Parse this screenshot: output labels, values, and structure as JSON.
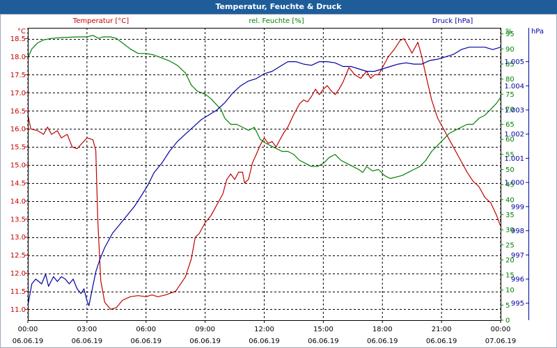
{
  "window": {
    "title": "Temperatur, Feuchte & Druck"
  },
  "chart_data": {
    "type": "line",
    "title": "Temperatur, Feuchte & Druck",
    "x_ticks": [
      {
        "time": "00:00",
        "date": "06.06.19"
      },
      {
        "time": "03:00",
        "date": "06.06.19"
      },
      {
        "time": "06:00",
        "date": "06.06.19"
      },
      {
        "time": "09:00",
        "date": "06.06.19"
      },
      {
        "time": "12:00",
        "date": "06.06.19"
      },
      {
        "time": "15:00",
        "date": "06.06.19"
      },
      {
        "time": "18:00",
        "date": "06.06.19"
      },
      {
        "time": "21:00",
        "date": "06.06.19"
      },
      {
        "time": "00:00",
        "date": "07.06.19"
      }
    ],
    "xlim": [
      0,
      24
    ],
    "axes": {
      "temperature": {
        "label": "Temperatur [°C]",
        "unit": "°C",
        "range": [
          10.7,
          18.8
        ],
        "ticks": [
          "11.0",
          "11.5",
          "12.0",
          "12.5",
          "13.0",
          "13.5",
          "14.0",
          "14.5",
          "15.0",
          "15.5",
          "16.0",
          "16.5",
          "17.0",
          "17.5",
          "18.0",
          "18.5"
        ],
        "color": "#c00000"
      },
      "humidity": {
        "label": "rel. Feuchte [%]",
        "unit": "%",
        "range": [
          0,
          97
        ],
        "ticks": [
          "0",
          "5",
          "10",
          "15",
          "20",
          "25",
          "30",
          "35",
          "40",
          "45",
          "50",
          "55",
          "60",
          "65",
          "70",
          "75",
          "80",
          "85",
          "90",
          "95"
        ],
        "color": "#008000"
      },
      "pressure": {
        "label": "Druck [hPa]",
        "unit": "hPa",
        "range": [
          994.3,
          1006.4
        ],
        "ticks": [
          "995",
          "996",
          "997",
          "998",
          "999",
          "1.000",
          "1.001",
          "1.002",
          "1.003",
          "1.004",
          "1.005"
        ],
        "color": "#0000a0"
      }
    },
    "series": [
      {
        "name": "Temperatur",
        "axis": "temperature",
        "color": "#c00000",
        "points": [
          [
            0,
            16.4
          ],
          [
            0.15,
            16.0
          ],
          [
            0.5,
            15.95
          ],
          [
            0.8,
            15.85
          ],
          [
            1.0,
            16.05
          ],
          [
            1.2,
            15.85
          ],
          [
            1.5,
            15.95
          ],
          [
            1.7,
            15.75
          ],
          [
            2.0,
            15.85
          ],
          [
            2.25,
            15.5
          ],
          [
            2.5,
            15.45
          ],
          [
            2.75,
            15.6
          ],
          [
            3.0,
            15.75
          ],
          [
            3.3,
            15.7
          ],
          [
            3.45,
            15.4
          ],
          [
            3.55,
            13.5
          ],
          [
            3.7,
            11.8
          ],
          [
            3.9,
            11.2
          ],
          [
            4.2,
            11.0
          ],
          [
            4.5,
            11.05
          ],
          [
            4.8,
            11.25
          ],
          [
            5.2,
            11.35
          ],
          [
            5.6,
            11.38
          ],
          [
            6.0,
            11.35
          ],
          [
            6.3,
            11.4
          ],
          [
            6.6,
            11.35
          ],
          [
            7.0,
            11.4
          ],
          [
            7.5,
            11.5
          ],
          [
            8.0,
            11.9
          ],
          [
            8.3,
            12.4
          ],
          [
            8.5,
            13.0
          ],
          [
            8.7,
            13.1
          ],
          [
            9.0,
            13.4
          ],
          [
            9.3,
            13.6
          ],
          [
            9.6,
            13.9
          ],
          [
            9.9,
            14.2
          ],
          [
            10.1,
            14.6
          ],
          [
            10.3,
            14.75
          ],
          [
            10.5,
            14.6
          ],
          [
            10.7,
            14.8
          ],
          [
            10.9,
            14.8
          ],
          [
            11.0,
            14.5
          ],
          [
            11.2,
            14.6
          ],
          [
            11.4,
            15.05
          ],
          [
            11.6,
            15.3
          ],
          [
            11.8,
            15.55
          ],
          [
            12.0,
            15.75
          ],
          [
            12.2,
            15.6
          ],
          [
            12.4,
            15.65
          ],
          [
            12.6,
            15.5
          ],
          [
            12.8,
            15.7
          ],
          [
            13.0,
            15.9
          ],
          [
            13.2,
            16.05
          ],
          [
            13.5,
            16.4
          ],
          [
            13.8,
            16.7
          ],
          [
            14.0,
            16.8
          ],
          [
            14.2,
            16.75
          ],
          [
            14.4,
            16.9
          ],
          [
            14.6,
            17.1
          ],
          [
            14.8,
            16.95
          ],
          [
            15.0,
            17.1
          ],
          [
            15.2,
            17.2
          ],
          [
            15.4,
            17.05
          ],
          [
            15.6,
            16.95
          ],
          [
            15.8,
            17.1
          ],
          [
            16.0,
            17.3
          ],
          [
            16.3,
            17.7
          ],
          [
            16.6,
            17.5
          ],
          [
            16.9,
            17.4
          ],
          [
            17.2,
            17.6
          ],
          [
            17.4,
            17.4
          ],
          [
            17.6,
            17.5
          ],
          [
            17.8,
            17.5
          ],
          [
            18.0,
            17.7
          ],
          [
            18.3,
            18.0
          ],
          [
            18.6,
            18.2
          ],
          [
            18.9,
            18.45
          ],
          [
            19.1,
            18.5
          ],
          [
            19.3,
            18.3
          ],
          [
            19.5,
            18.1
          ],
          [
            19.8,
            18.4
          ],
          [
            20.0,
            18.0
          ],
          [
            20.2,
            17.5
          ],
          [
            20.5,
            16.8
          ],
          [
            20.8,
            16.3
          ],
          [
            21.1,
            16.0
          ],
          [
            21.4,
            15.7
          ],
          [
            21.7,
            15.4
          ],
          [
            22.0,
            15.1
          ],
          [
            22.3,
            14.8
          ],
          [
            22.6,
            14.55
          ],
          [
            22.9,
            14.4
          ],
          [
            23.2,
            14.1
          ],
          [
            23.5,
            13.95
          ],
          [
            23.8,
            13.6
          ],
          [
            24.0,
            13.3
          ]
        ]
      },
      {
        "name": "rel. Feuchte",
        "axis": "humidity",
        "color": "#008000",
        "points": [
          [
            0,
            87
          ],
          [
            0.2,
            90
          ],
          [
            0.5,
            92
          ],
          [
            0.8,
            93
          ],
          [
            1.2,
            93.5
          ],
          [
            1.8,
            93.8
          ],
          [
            2.5,
            94
          ],
          [
            3.0,
            94
          ],
          [
            3.3,
            94.5
          ],
          [
            3.6,
            93.5
          ],
          [
            3.8,
            94
          ],
          [
            4.2,
            94
          ],
          [
            4.5,
            93.5
          ],
          [
            4.8,
            92
          ],
          [
            5.2,
            90
          ],
          [
            5.6,
            88.5
          ],
          [
            6.0,
            88.5
          ],
          [
            6.4,
            88
          ],
          [
            6.8,
            87
          ],
          [
            7.2,
            86
          ],
          [
            7.6,
            84.5
          ],
          [
            8.0,
            82
          ],
          [
            8.3,
            78
          ],
          [
            8.6,
            76
          ],
          [
            9.0,
            75
          ],
          [
            9.3,
            73.5
          ],
          [
            9.5,
            72
          ],
          [
            9.8,
            70
          ],
          [
            10.0,
            67
          ],
          [
            10.3,
            65
          ],
          [
            10.6,
            65
          ],
          [
            10.9,
            64
          ],
          [
            11.2,
            63
          ],
          [
            11.5,
            64
          ],
          [
            11.8,
            60
          ],
          [
            12.0,
            59
          ],
          [
            12.3,
            58
          ],
          [
            12.6,
            57
          ],
          [
            12.9,
            56
          ],
          [
            13.2,
            56
          ],
          [
            13.5,
            55
          ],
          [
            13.8,
            53
          ],
          [
            14.1,
            52
          ],
          [
            14.4,
            51
          ],
          [
            14.7,
            51
          ],
          [
            15.0,
            52
          ],
          [
            15.3,
            54
          ],
          [
            15.6,
            55
          ],
          [
            15.9,
            53
          ],
          [
            16.2,
            52
          ],
          [
            16.5,
            51
          ],
          [
            16.8,
            50
          ],
          [
            17.0,
            49
          ],
          [
            17.2,
            51
          ],
          [
            17.5,
            49.5
          ],
          [
            17.8,
            50
          ],
          [
            18.1,
            48
          ],
          [
            18.4,
            47
          ],
          [
            18.7,
            47.5
          ],
          [
            19.0,
            48
          ],
          [
            19.3,
            49
          ],
          [
            19.6,
            50
          ],
          [
            19.9,
            51
          ],
          [
            20.2,
            53
          ],
          [
            20.5,
            56
          ],
          [
            20.8,
            58
          ],
          [
            21.1,
            60
          ],
          [
            21.4,
            62
          ],
          [
            21.7,
            63
          ],
          [
            22.0,
            64
          ],
          [
            22.3,
            65
          ],
          [
            22.6,
            65
          ],
          [
            22.9,
            67
          ],
          [
            23.2,
            68
          ],
          [
            23.5,
            70
          ],
          [
            23.8,
            72
          ],
          [
            24.0,
            74
          ]
        ]
      },
      {
        "name": "Druck",
        "axis": "pressure",
        "color": "#0000a0",
        "points": [
          [
            0,
            994.9
          ],
          [
            0.2,
            995.8
          ],
          [
            0.4,
            996.0
          ],
          [
            0.7,
            995.8
          ],
          [
            0.9,
            996.2
          ],
          [
            1.05,
            995.7
          ],
          [
            1.3,
            996.1
          ],
          [
            1.5,
            995.9
          ],
          [
            1.7,
            996.1
          ],
          [
            1.9,
            996.0
          ],
          [
            2.1,
            995.8
          ],
          [
            2.3,
            996.0
          ],
          [
            2.5,
            995.6
          ],
          [
            2.7,
            995.4
          ],
          [
            2.85,
            995.6
          ],
          [
            3.0,
            995.1
          ],
          [
            3.1,
            994.9
          ],
          [
            3.25,
            995.5
          ],
          [
            3.45,
            996.3
          ],
          [
            3.65,
            996.8
          ],
          [
            3.9,
            997.3
          ],
          [
            4.3,
            997.9
          ],
          [
            4.7,
            998.3
          ],
          [
            5.0,
            998.6
          ],
          [
            5.4,
            999.0
          ],
          [
            5.8,
            999.5
          ],
          [
            6.1,
            999.9
          ],
          [
            6.4,
            1000.4
          ],
          [
            6.8,
            1000.8
          ],
          [
            7.2,
            1001.3
          ],
          [
            7.6,
            1001.7
          ],
          [
            8.0,
            1002.0
          ],
          [
            8.4,
            1002.3
          ],
          [
            8.8,
            1002.6
          ],
          [
            9.2,
            1002.8
          ],
          [
            9.6,
            1003.0
          ],
          [
            10.0,
            1003.3
          ],
          [
            10.4,
            1003.7
          ],
          [
            10.8,
            1004.0
          ],
          [
            11.2,
            1004.2
          ],
          [
            11.6,
            1004.3
          ],
          [
            12.0,
            1004.5
          ],
          [
            12.4,
            1004.6
          ],
          [
            12.8,
            1004.8
          ],
          [
            13.2,
            1005.0
          ],
          [
            13.6,
            1005.0
          ],
          [
            14.0,
            1004.9
          ],
          [
            14.4,
            1004.85
          ],
          [
            14.8,
            1005.0
          ],
          [
            15.2,
            1005.0
          ],
          [
            15.6,
            1004.95
          ],
          [
            16.0,
            1004.8
          ],
          [
            16.4,
            1004.8
          ],
          [
            16.8,
            1004.7
          ],
          [
            17.2,
            1004.6
          ],
          [
            17.6,
            1004.6
          ],
          [
            18.0,
            1004.7
          ],
          [
            18.4,
            1004.8
          ],
          [
            18.8,
            1004.9
          ],
          [
            19.2,
            1004.95
          ],
          [
            19.6,
            1004.9
          ],
          [
            20.0,
            1004.9
          ],
          [
            20.4,
            1005.05
          ],
          [
            20.8,
            1005.1
          ],
          [
            21.2,
            1005.2
          ],
          [
            21.6,
            1005.3
          ],
          [
            22.0,
            1005.5
          ],
          [
            22.4,
            1005.6
          ],
          [
            22.8,
            1005.6
          ],
          [
            23.2,
            1005.6
          ],
          [
            23.6,
            1005.5
          ],
          [
            24.0,
            1005.6
          ]
        ]
      }
    ],
    "grid": true
  }
}
